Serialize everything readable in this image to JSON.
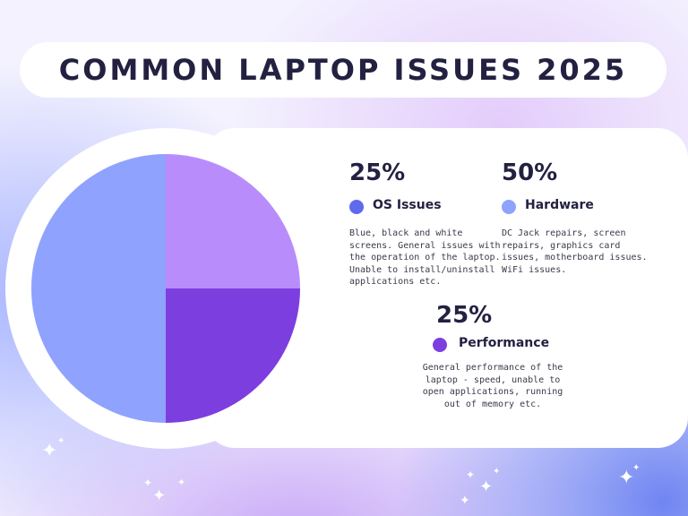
{
  "title": "COMMON LAPTOP ISSUES 2025",
  "colors": {
    "os_issues": "#5f6bee",
    "hardware": "#8fa2fd",
    "performance": "#7d3ee0",
    "pie_os_slice": "#b88dfb",
    "text_dark": "#232141"
  },
  "chart_data": {
    "type": "pie",
    "categories": [
      "OS Issues",
      "Hardware",
      "Performance"
    ],
    "values": [
      25,
      50,
      25
    ],
    "unit": "%"
  },
  "items": [
    {
      "percent": "25%",
      "label": "OS Issues",
      "description_lines": [
        "Blue, black and white",
        "screens. General issues with",
        "the operation of the laptop.",
        "Unable to install/uninstall",
        "applications etc."
      ]
    },
    {
      "percent": "50%",
      "label": "Hardware",
      "description_lines": [
        "DC Jack repairs, screen",
        "repairs, graphics card",
        "issues, motherboard issues.",
        "WiFi issues."
      ]
    },
    {
      "percent": "25%",
      "label": "Performance",
      "description_lines": [
        "General performance of the",
        "laptop - speed, unable to",
        "open applications, running",
        "out of memory etc."
      ]
    }
  ]
}
